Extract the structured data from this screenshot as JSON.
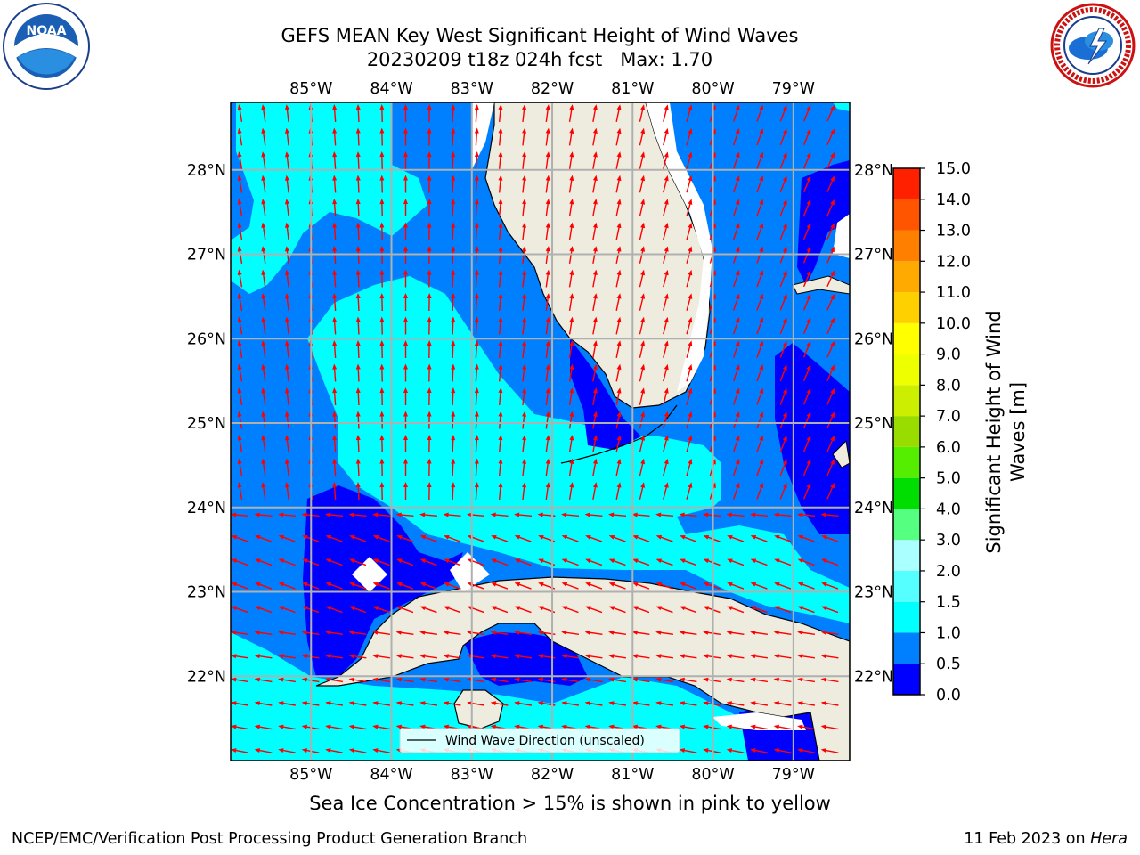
{
  "header": {
    "title_line1": "GEFS MEAN Key West Significant Height of Wind Waves",
    "title_line2": "20230209 t18z 024h fcst   Max: 1.70"
  },
  "logos": {
    "left": {
      "name": "noaa-logo",
      "text": "NOAA",
      "ring_text": "NATIONAL OCEANIC AND ATMOSPHERIC ADMINISTRATION · U.S. DEPARTMENT OF COMMERCE"
    },
    "right": {
      "name": "nws-logo",
      "ring_text": "NATIONAL WEATHER SERVICE"
    }
  },
  "map": {
    "lon_ticks": [
      "85°W",
      "84°W",
      "83°W",
      "82°W",
      "81°W",
      "80°W",
      "79°W"
    ],
    "lat_ticks": [
      "28°N",
      "27°N",
      "26°N",
      "25°N",
      "24°N",
      "23°N",
      "22°N"
    ],
    "lon_range": [
      -86.0,
      -78.3
    ],
    "lat_range": [
      21.0,
      28.8
    ],
    "legend_label": "Wind Wave Direction (unscaled)",
    "colors": {
      "land": "#eeecdf",
      "ocean_mid": "#0080ff",
      "ocean_low": "#0000ff",
      "ocean_high": "#00ffff",
      "arrow": "#ff0000",
      "grid": "#b0b0b0"
    }
  },
  "chart_data": {
    "type": "heatmap",
    "title": "GEFS MEAN Key West Significant Height of Wind Waves",
    "subtitle": "20230209 t18z 024h fcst   Max: 1.70",
    "max": 1.7,
    "colorbar": {
      "label": "Significant Height of Wind Waves [m]",
      "levels": [
        0.0,
        0.5,
        1.0,
        1.5,
        2.0,
        3.0,
        4.0,
        5.0,
        6.0,
        7.0,
        8.0,
        9.0,
        10.0,
        11.0,
        12.0,
        13.0,
        14.0,
        15.0
      ],
      "tick_labels": [
        "0.0",
        "0.5",
        "1.0",
        "1.5",
        "2.0",
        "3.0",
        "4.0",
        "5.0",
        "6.0",
        "7.0",
        "8.0",
        "9.0",
        "10.0",
        "11.0",
        "12.0",
        "13.0",
        "14.0",
        "15.0"
      ],
      "colors": [
        "#0000ff",
        "#0080ff",
        "#00ffff",
        "#55ffff",
        "#aaffff",
        "#55ff80",
        "#00dd00",
        "#55ee00",
        "#99dd00",
        "#ccee00",
        "#eeff00",
        "#ffff00",
        "#ffd000",
        "#ffaa00",
        "#ff8000",
        "#ff5500",
        "#ff2000"
      ]
    }
  },
  "footer": {
    "note": "Sea Ice Concentration > 15% is shown in pink to yellow",
    "left": "NCEP/EMC/Verification Post Processing Product Generation Branch",
    "right_date": "11 Feb 2023 on ",
    "right_host": "Hera"
  }
}
